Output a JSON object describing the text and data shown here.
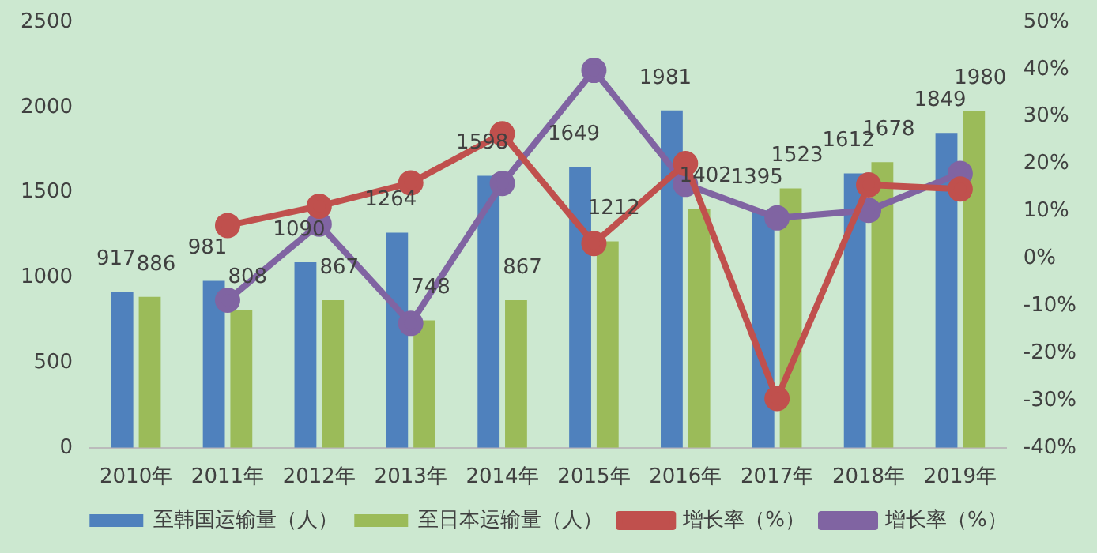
{
  "chart_data": {
    "type": "bar",
    "categories": [
      "2010年",
      "2011年",
      "2012年",
      "2013年",
      "2014年",
      "2015年",
      "2016年",
      "2017年",
      "2018年",
      "2019年"
    ],
    "series": [
      {
        "name": "至韩国运输量（人）",
        "color": "#4f81bd",
        "values": [
          917,
          981,
          1090,
          1264,
          1598,
          1649,
          1981,
          1395,
          1612,
          1849
        ],
        "value_labels": [
          "917",
          "981",
          "1090",
          "1264",
          "1598",
          "1649",
          "1981",
          "1395",
          "1612",
          "1849"
        ]
      },
      {
        "name": "至日本运输量（人）",
        "color": "#9bbb59",
        "values": [
          886,
          808,
          867,
          748,
          867,
          1212,
          1402,
          1523,
          1678,
          1980
        ],
        "value_labels": [
          "886",
          "808",
          "867",
          "748",
          "867",
          "1212",
          "1402",
          "1523",
          "1678",
          "1980"
        ]
      },
      {
        "name": "增长率（%）",
        "type": "line",
        "axis": "y2",
        "color": "#c0504d",
        "values": [
          null,
          7.0,
          11.1,
          16.0,
          26.4,
          3.2,
          20.1,
          -29.6,
          15.6,
          14.7
        ]
      },
      {
        "name": "增长率（%）",
        "type": "line",
        "axis": "y2",
        "color": "#8064a2",
        "values": [
          null,
          -8.8,
          7.3,
          -13.7,
          15.9,
          39.8,
          15.7,
          8.6,
          10.2,
          18.0
        ]
      }
    ],
    "ylim": [
      0,
      2500
    ],
    "yticks": [
      0,
      500,
      1000,
      1500,
      2000,
      2500
    ],
    "y2lim": [
      -40,
      50
    ],
    "y2ticks": [
      {
        "value": -40,
        "label": "-40%"
      },
      {
        "value": -30,
        "label": "-30%"
      },
      {
        "value": -20,
        "label": "-20%"
      },
      {
        "value": -10,
        "label": "-10%"
      },
      {
        "value": 0,
        "label": "0%"
      },
      {
        "value": 10,
        "label": "10%"
      },
      {
        "value": 20,
        "label": "20%"
      },
      {
        "value": 30,
        "label": "30%"
      },
      {
        "value": 40,
        "label": "40%"
      },
      {
        "value": 50,
        "label": "50%"
      }
    ],
    "grid": false,
    "legend": "bottom",
    "marker": "circle",
    "line_style": "solid"
  }
}
